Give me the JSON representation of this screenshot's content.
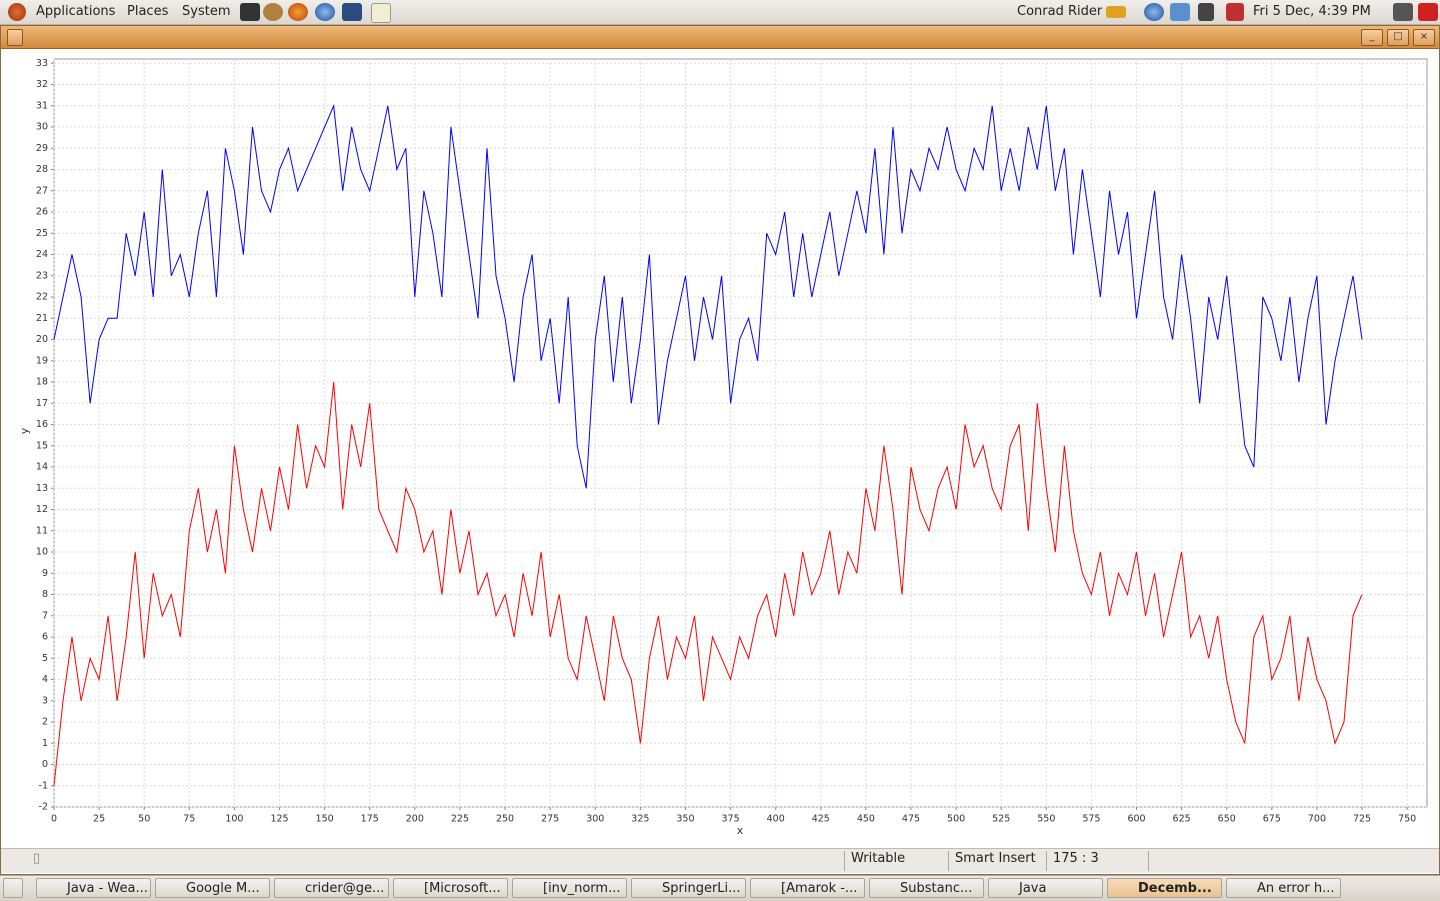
{
  "top_panel": {
    "menus": [
      "Applications",
      "Places",
      "System"
    ],
    "user": "Conrad Rider",
    "clock": "Fri  5 Dec,  4:39 PM"
  },
  "chart_data": {
    "type": "line",
    "x_label": "x",
    "y_label": "y",
    "x": [
      0,
      5,
      10,
      15,
      20,
      25,
      30,
      35,
      40,
      45,
      50,
      55,
      60,
      65,
      70,
      75,
      80,
      85,
      90,
      95,
      100,
      105,
      110,
      115,
      120,
      125,
      130,
      135,
      140,
      145,
      150,
      155,
      160,
      165,
      170,
      175,
      180,
      185,
      190,
      195,
      200,
      205,
      210,
      215,
      220,
      225,
      230,
      235,
      240,
      245,
      250,
      255,
      260,
      265,
      270,
      275,
      280,
      285,
      290,
      295,
      300,
      305,
      310,
      315,
      320,
      325,
      330,
      335,
      340,
      345,
      350,
      355,
      360,
      365,
      370,
      375,
      380,
      385,
      390,
      395,
      400,
      405,
      410,
      415,
      420,
      425,
      430,
      435,
      440,
      445,
      450,
      455,
      460,
      465,
      470,
      475,
      480,
      485,
      490,
      495,
      500,
      505,
      510,
      515,
      520,
      525,
      530,
      535,
      540,
      545,
      550,
      555,
      560,
      565,
      570,
      575,
      580,
      585,
      590,
      595,
      600,
      605,
      610,
      615,
      620,
      625,
      630,
      635,
      640,
      645,
      650,
      655,
      660,
      665,
      670,
      675,
      680,
      685,
      690,
      695,
      700,
      705,
      710,
      715,
      720,
      725
    ],
    "series": [
      {
        "color": "#0000ff",
        "values": [
          20,
          22,
          24,
          22,
          17,
          20,
          21,
          21,
          25,
          23,
          26,
          22,
          28,
          23,
          24,
          22,
          25,
          27,
          22,
          29,
          27,
          24,
          30,
          27,
          26,
          28,
          29,
          27,
          28,
          29,
          30,
          31,
          27,
          30,
          28,
          27,
          29,
          31,
          28,
          29,
          22,
          27,
          25,
          22,
          30,
          27,
          24,
          21,
          29,
          23,
          21,
          18,
          22,
          24,
          19,
          21,
          17,
          22,
          15,
          13,
          20,
          23,
          18,
          22,
          17,
          20,
          24,
          16,
          19,
          21,
          23,
          19,
          22,
          20,
          23,
          17,
          20,
          21,
          19,
          25,
          24,
          26,
          22,
          25,
          22,
          24,
          26,
          23,
          25,
          27,
          25,
          29,
          24,
          30,
          25,
          28,
          27,
          29,
          28,
          30,
          28,
          27,
          29,
          28,
          31,
          27,
          29,
          27,
          30,
          28,
          31,
          27,
          29,
          24,
          28,
          25,
          22,
          27,
          24,
          26,
          21,
          24,
          27,
          22,
          20,
          24,
          21,
          17,
          22,
          20,
          23,
          19,
          15,
          14,
          22,
          21,
          19,
          22,
          18,
          21,
          23,
          16,
          19,
          21,
          23,
          20
        ]
      },
      {
        "color": "#ff0000",
        "values": [
          -1,
          3,
          6,
          3,
          5,
          4,
          7,
          3,
          6,
          10,
          5,
          9,
          7,
          8,
          6,
          11,
          13,
          10,
          12,
          9,
          15,
          12,
          10,
          13,
          11,
          14,
          12,
          16,
          13,
          15,
          14,
          18,
          12,
          16,
          14,
          17,
          12,
          11,
          10,
          13,
          12,
          10,
          11,
          8,
          12,
          9,
          11,
          8,
          9,
          7,
          8,
          6,
          9,
          7,
          10,
          6,
          8,
          5,
          4,
          7,
          5,
          3,
          7,
          5,
          4,
          1,
          5,
          7,
          4,
          6,
          5,
          7,
          3,
          6,
          5,
          4,
          6,
          5,
          7,
          8,
          6,
          9,
          7,
          10,
          8,
          9,
          11,
          8,
          10,
          9,
          13,
          11,
          15,
          12,
          8,
          14,
          12,
          11,
          13,
          14,
          12,
          16,
          14,
          15,
          13,
          12,
          15,
          16,
          11,
          17,
          13,
          10,
          15,
          11,
          9,
          8,
          10,
          7,
          9,
          8,
          10,
          7,
          9,
          6,
          8,
          10,
          6,
          7,
          5,
          7,
          4,
          2,
          1,
          6,
          7,
          4,
          5,
          7,
          3,
          6,
          4,
          3,
          1,
          2,
          7,
          8
        ]
      }
    ],
    "xlim": [
      0,
      761
    ],
    "ylim": [
      -2,
      33.2
    ],
    "xticks": [
      0,
      25,
      50,
      75,
      100,
      125,
      150,
      175,
      200,
      225,
      250,
      275,
      300,
      325,
      350,
      375,
      400,
      425,
      450,
      475,
      500,
      525,
      550,
      575,
      600,
      625,
      650,
      675,
      700,
      725,
      750
    ],
    "yticks": [
      -2,
      -1,
      0,
      1,
      2,
      3,
      4,
      5,
      6,
      7,
      8,
      9,
      10,
      11,
      12,
      13,
      14,
      15,
      16,
      17,
      18,
      19,
      20,
      21,
      22,
      23,
      24,
      25,
      26,
      27,
      28,
      29,
      30,
      31,
      32,
      33
    ],
    "grid": true
  },
  "status_bar": [
    "Writable",
    "Smart Insert",
    "175 : 3"
  ],
  "taskbar": [
    "Java - Wea...",
    "Google M...",
    "crider@ge...",
    "[Microsoft...",
    "[inv_norm...",
    "SpringerLi...",
    "[Amarok -...",
    "Substanc...",
    "Java",
    "Decemb...",
    "An error h..."
  ]
}
